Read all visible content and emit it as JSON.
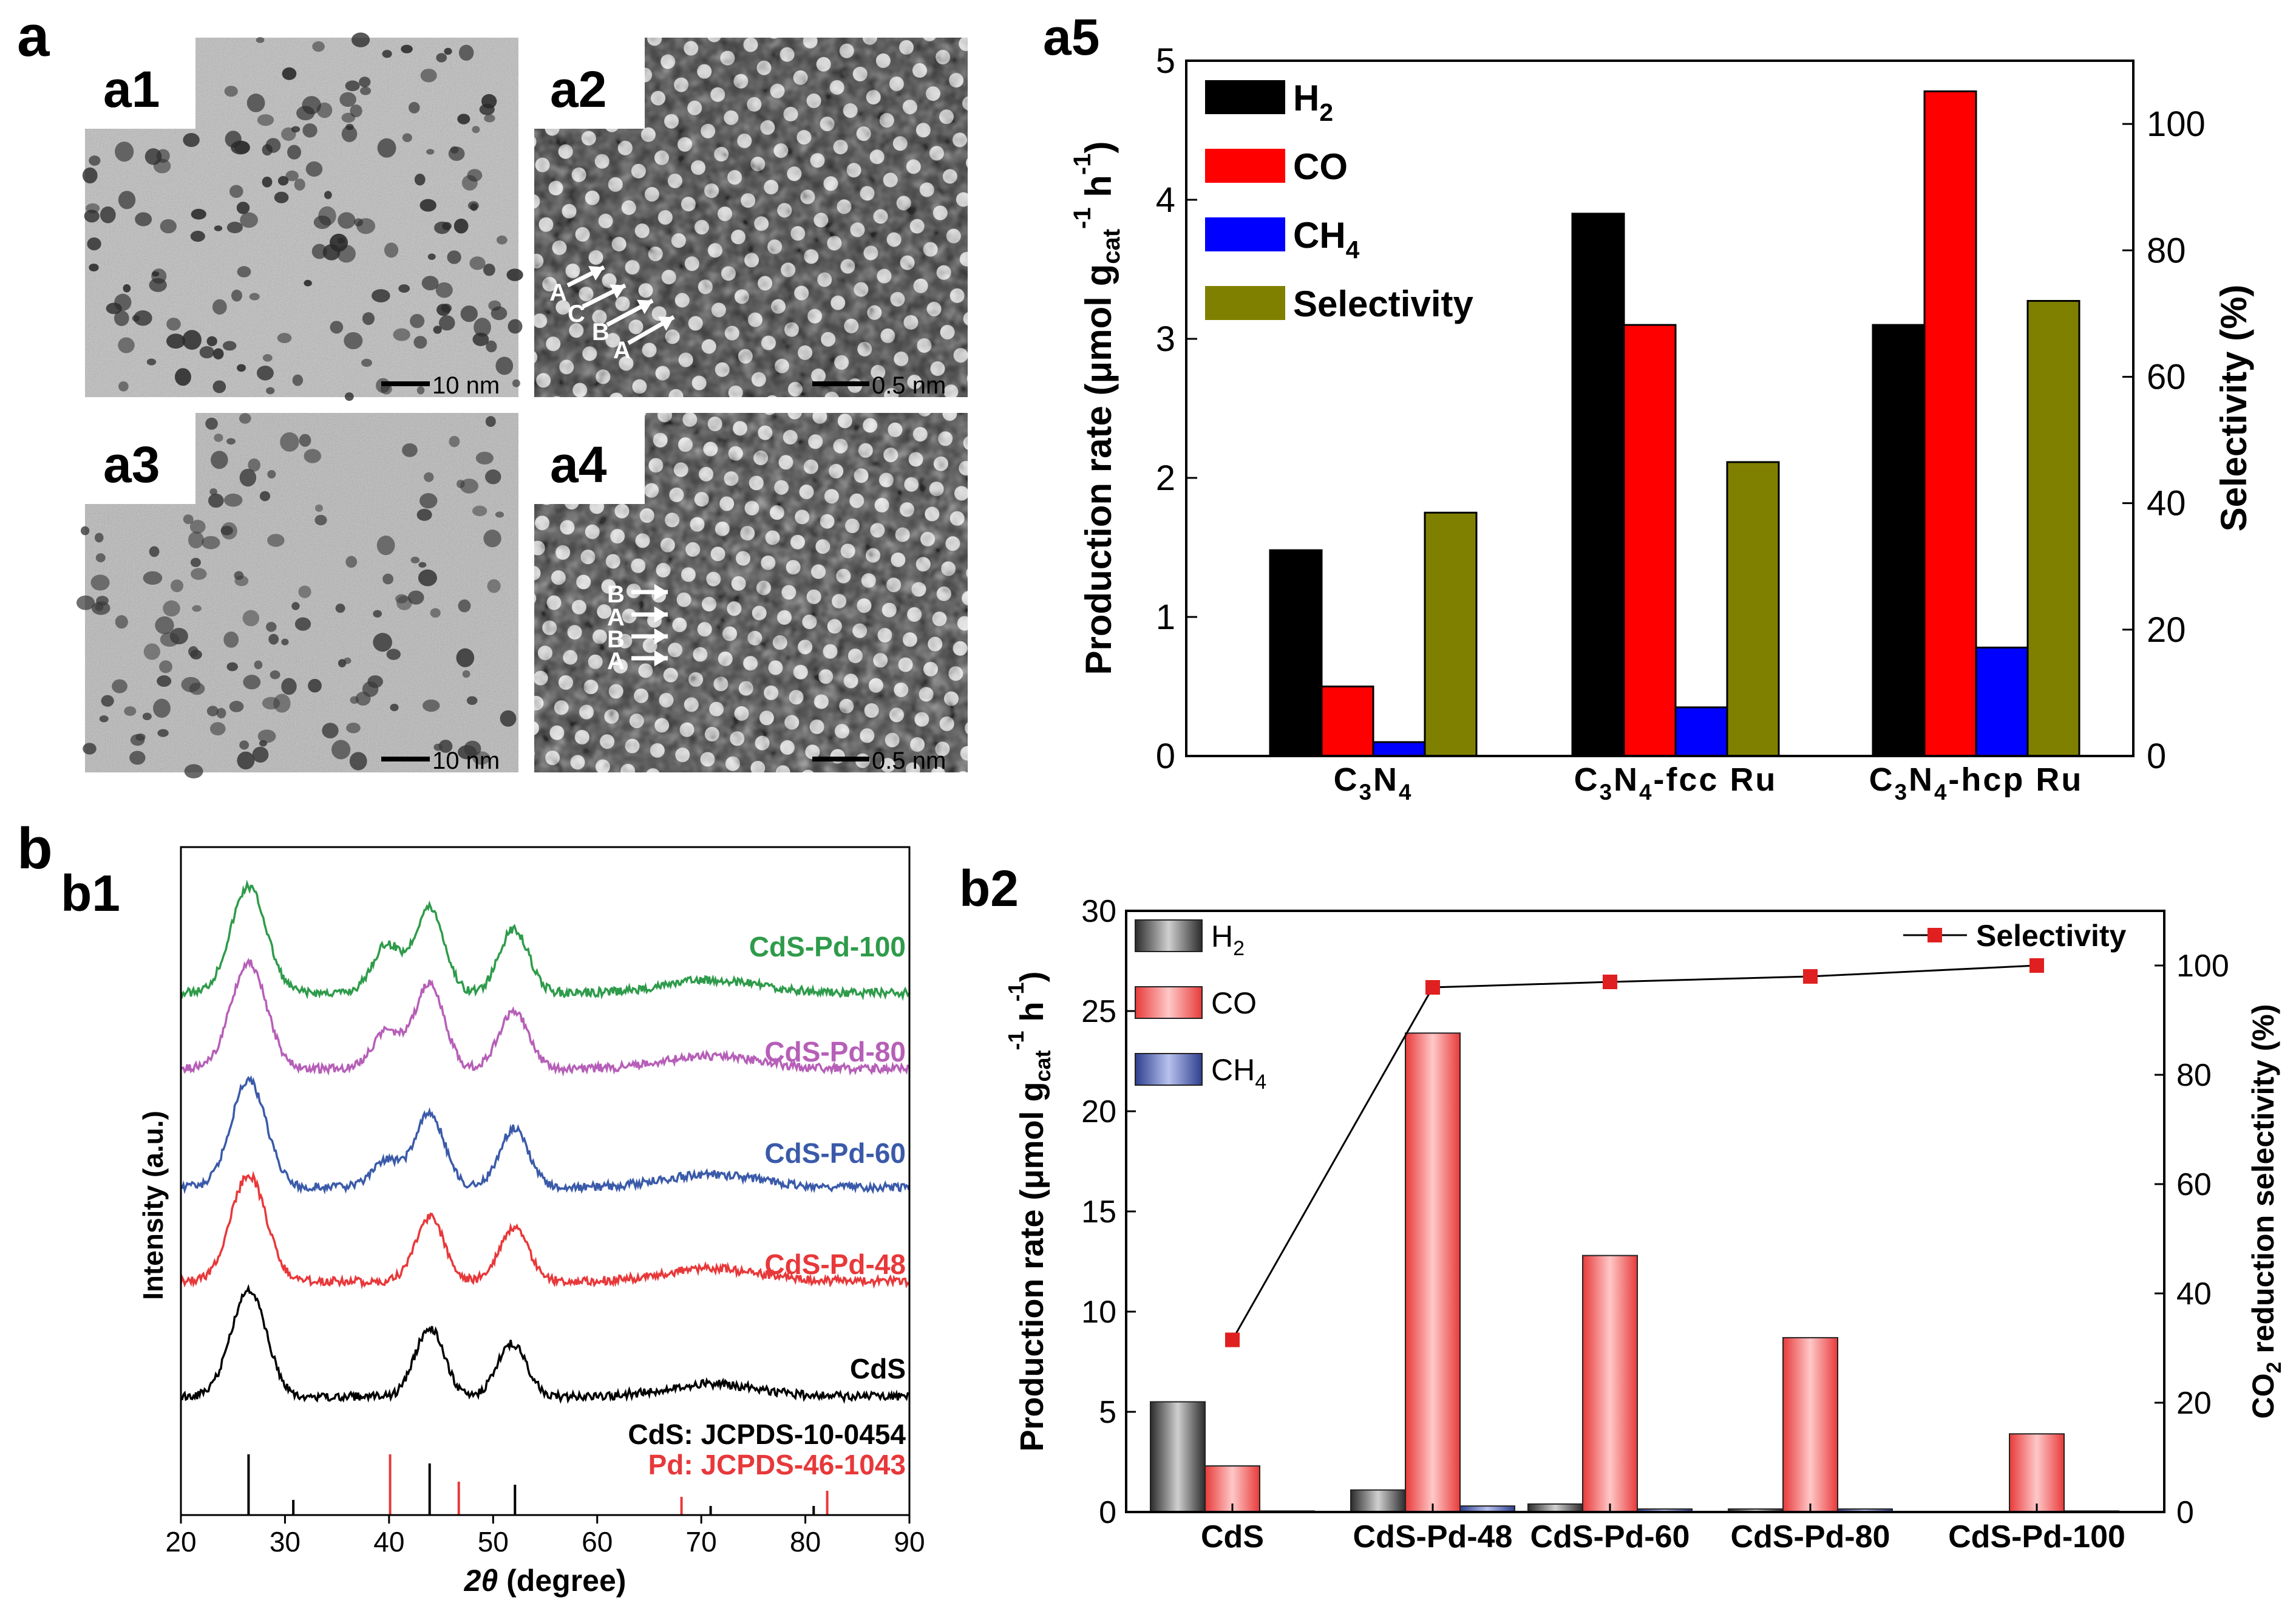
{
  "panel_labels": {
    "a": "a",
    "b": "b",
    "a1": "a1",
    "a2": "a2",
    "a3": "a3",
    "a4": "a4",
    "a5": "a5",
    "b1": "b1",
    "b2": "b2"
  },
  "micrographs": {
    "a1": {
      "scale": "10 nm"
    },
    "a2": {
      "scale": "0.5 nm",
      "stacking": [
        "A",
        "C",
        "B",
        "A"
      ]
    },
    "a3": {
      "scale": "10 nm"
    },
    "a4": {
      "scale": "0.5 nm",
      "stacking": [
        "B",
        "A",
        "B",
        "A"
      ]
    }
  },
  "chart_data": [
    {
      "id": "a5",
      "type": "bar",
      "categories": [
        "C3N4",
        "C3N4-fcc Ru",
        "C3N4-hcp Ru"
      ],
      "category_labels": [
        [
          {
            "t": "C"
          },
          {
            "t": "3",
            "sub": true
          },
          {
            "t": "N"
          },
          {
            "t": "4",
            "sub": true
          }
        ],
        [
          {
            "t": "C"
          },
          {
            "t": "3",
            "sub": true
          },
          {
            "t": "N"
          },
          {
            "t": "4",
            "sub": true
          },
          {
            "t": "-fcc Ru"
          }
        ],
        [
          {
            "t": "C"
          },
          {
            "t": "3",
            "sub": true
          },
          {
            "t": "N"
          },
          {
            "t": "4",
            "sub": true
          },
          {
            "t": "-hcp Ru"
          }
        ]
      ],
      "series": [
        {
          "name": "H2",
          "label": "H",
          "sub": "2",
          "color": "#000000",
          "axis": "left",
          "values": [
            1.48,
            3.9,
            3.1
          ]
        },
        {
          "name": "CO",
          "label": "CO",
          "sub": "",
          "color": "#ff0000",
          "axis": "left",
          "values": [
            0.5,
            3.1,
            4.78
          ]
        },
        {
          "name": "CH4",
          "label": "CH",
          "sub": "4",
          "color": "#0000ff",
          "axis": "left",
          "values": [
            0.1,
            0.35,
            0.78
          ]
        },
        {
          "name": "Selectivity",
          "label": "Selectivity",
          "sub": "",
          "color": "#808000",
          "axis": "right",
          "values": [
            38.5,
            46.5,
            72
          ]
        }
      ],
      "ylabel": "Production rate (μmol g_cat^-1 h^-1)",
      "ylabel_parts": {
        "main": "Production rate (μmol g",
        "sub": "cat",
        "sup1": "-1",
        "mid": " h",
        "sup2": "-1",
        "end": ")"
      },
      "ylim": [
        0,
        5
      ],
      "yticks": [
        0,
        1,
        2,
        3,
        4,
        5
      ],
      "y2label": "Selectivity (%)",
      "y2lim": [
        0,
        110
      ],
      "y2ticks": [
        0,
        20,
        40,
        60,
        80,
        100
      ]
    },
    {
      "id": "b1",
      "type": "line",
      "xlabel": "2θ (degree)",
      "xlabel_parts": {
        "var": "2θ",
        "rest": " (degree)"
      },
      "ylabel": "Intensity (a.u.)",
      "xlim": [
        20,
        90
      ],
      "xticks": [
        20,
        30,
        40,
        50,
        60,
        70,
        80,
        90
      ],
      "series": [
        {
          "name": "CdS-Pd-100",
          "color": "#2e9b4a",
          "peaks": [
            [
              26.5,
              1.0
            ],
            [
              39.8,
              0.45
            ],
            [
              43.9,
              0.8
            ],
            [
              52.0,
              0.6
            ]
          ]
        },
        {
          "name": "CdS-Pd-80",
          "color": "#b65fb8",
          "peaks": [
            [
              26.5,
              1.0
            ],
            [
              39.8,
              0.35
            ],
            [
              43.9,
              0.8
            ],
            [
              52.0,
              0.55
            ]
          ]
        },
        {
          "name": "CdS-Pd-60",
          "color": "#3a5aa9",
          "peaks": [
            [
              26.5,
              1.0
            ],
            [
              39.8,
              0.25
            ],
            [
              43.9,
              0.7
            ],
            [
              52.0,
              0.55
            ]
          ]
        },
        {
          "name": "CdS-Pd-48",
          "color": "#e8383a",
          "peaks": [
            [
              26.5,
              1.0
            ],
            [
              43.9,
              0.6
            ],
            [
              52.0,
              0.5
            ]
          ]
        },
        {
          "name": "CdS",
          "color": "#000000",
          "peaks": [
            [
              26.5,
              1.0
            ],
            [
              43.9,
              0.65
            ],
            [
              51.8,
              0.5
            ]
          ]
        }
      ],
      "references": [
        {
          "name": "CdS: JCPDS-10-0454",
          "color": "#000000",
          "lines": [
            [
              26.5,
              1.0
            ],
            [
              30.8,
              0.25
            ],
            [
              43.9,
              0.85
            ],
            [
              52.1,
              0.5
            ],
            [
              70.9,
              0.15
            ],
            [
              80.8,
              0.15
            ]
          ]
        },
        {
          "name": "Pd: JCPDS-46-1043",
          "color": "#e8383a",
          "lines": [
            [
              40.1,
              1.0
            ],
            [
              46.7,
              0.55
            ],
            [
              68.1,
              0.3
            ],
            [
              82.1,
              0.4
            ]
          ]
        }
      ]
    },
    {
      "id": "b2",
      "type": "bar",
      "categories": [
        "CdS",
        "CdS-Pd-48",
        "CdS-Pd-60",
        "CdS-Pd-80",
        "CdS-Pd-100"
      ],
      "series": [
        {
          "name": "H2",
          "label": "H",
          "sub": "2",
          "color": "#505050",
          "values": [
            5.5,
            1.1,
            0.4,
            0.15,
            0.0
          ]
        },
        {
          "name": "CO",
          "label": "CO",
          "sub": "",
          "color": "#f25a5a",
          "values": [
            2.3,
            23.9,
            12.8,
            8.7,
            3.9
          ]
        },
        {
          "name": "CH4",
          "label": "CH",
          "sub": "4",
          "color": "#4d5fa8",
          "values": [
            0.05,
            0.3,
            0.15,
            0.15,
            0.05
          ]
        }
      ],
      "line_series": {
        "name": "Selectivity",
        "color": "#e02020",
        "values": [
          31.5,
          96,
          97,
          98,
          100
        ]
      },
      "ylabel": "Production rate (μmol g_cat^-1 h^-1)",
      "ylabel_parts": {
        "main": "Production rate (μmol g",
        "sub": "cat",
        "sup1": "-1",
        "mid": " h",
        "sup2": "-1",
        "end": ")"
      },
      "ylim": [
        0,
        30
      ],
      "yticks": [
        0,
        5,
        10,
        15,
        20,
        25,
        30
      ],
      "y2label": "CO2 reduction selectivity (%)",
      "y2label_parts": {
        "pre": "CO",
        "sub": "2",
        "post": " reduction selectivity (%)"
      },
      "y2lim": [
        0,
        110
      ],
      "y2ticks": [
        0,
        20,
        40,
        60,
        80,
        100
      ]
    }
  ]
}
